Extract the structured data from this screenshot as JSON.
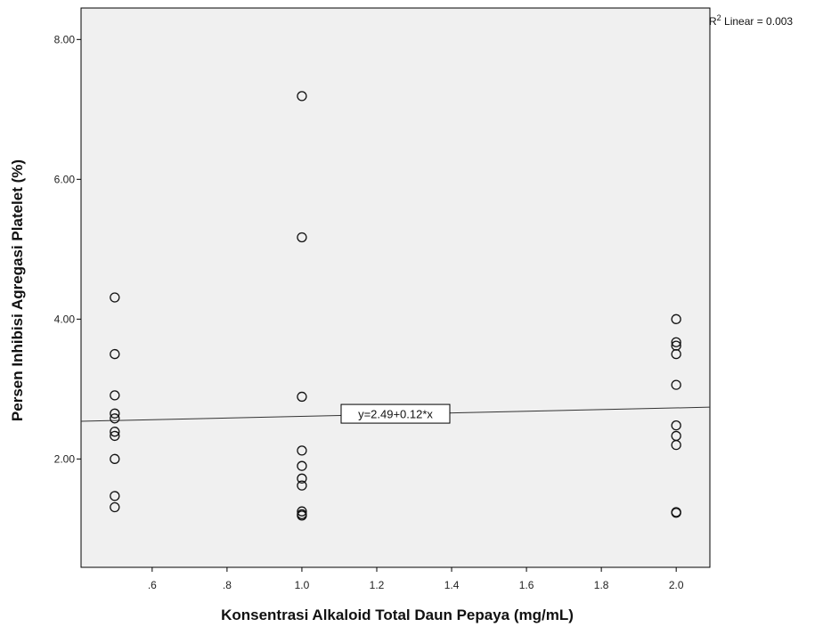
{
  "chart_data": {
    "type": "scatter",
    "xlabel": "Konsentrasi Alkaloid Total Daun Pepaya (mg/mL)",
    "ylabel": "Persen Inhibisi Agregasi Platelet (%)",
    "xlim": [
      0.41,
      2.09
    ],
    "ylim": [
      0.45,
      8.45
    ],
    "x_ticks": [
      0.6,
      0.8,
      1.0,
      1.2,
      1.4,
      1.6,
      1.8,
      2.0
    ],
    "x_tick_labels": [
      ".6",
      ".8",
      "1.0",
      "1.2",
      "1.4",
      "1.6",
      "1.8",
      "2.0"
    ],
    "y_ticks": [
      2.0,
      4.0,
      6.0,
      8.0
    ],
    "y_tick_labels": [
      "2.00",
      "4.00",
      "6.00",
      "8.00"
    ],
    "grid": false,
    "background_color": "#f0f0f0",
    "points": [
      {
        "x": 0.5,
        "y": 4.31
      },
      {
        "x": 0.5,
        "y": 3.5
      },
      {
        "x": 0.5,
        "y": 2.91
      },
      {
        "x": 0.5,
        "y": 2.65
      },
      {
        "x": 0.5,
        "y": 2.58
      },
      {
        "x": 0.5,
        "y": 2.39
      },
      {
        "x": 0.5,
        "y": 2.33
      },
      {
        "x": 0.5,
        "y": 2.0
      },
      {
        "x": 0.5,
        "y": 1.47
      },
      {
        "x": 0.5,
        "y": 1.31
      },
      {
        "x": 1.0,
        "y": 7.19
      },
      {
        "x": 1.0,
        "y": 5.17
      },
      {
        "x": 1.0,
        "y": 2.89
      },
      {
        "x": 1.0,
        "y": 2.12
      },
      {
        "x": 1.0,
        "y": 1.9
      },
      {
        "x": 1.0,
        "y": 1.72
      },
      {
        "x": 1.0,
        "y": 1.62
      },
      {
        "x": 1.0,
        "y": 1.25
      },
      {
        "x": 1.0,
        "y": 1.19
      },
      {
        "x": 1.0,
        "y": 1.21
      },
      {
        "x": 2.0,
        "y": 4.0
      },
      {
        "x": 2.0,
        "y": 3.67
      },
      {
        "x": 2.0,
        "y": 3.62
      },
      {
        "x": 2.0,
        "y": 3.5
      },
      {
        "x": 2.0,
        "y": 3.06
      },
      {
        "x": 2.0,
        "y": 2.48
      },
      {
        "x": 2.0,
        "y": 2.33
      },
      {
        "x": 2.0,
        "y": 2.2
      },
      {
        "x": 2.0,
        "y": 1.24
      },
      {
        "x": 2.0,
        "y": 1.23
      }
    ],
    "fit_line": {
      "intercept": 2.49,
      "slope": 0.12
    },
    "fit_label": "y=2.49+0.12*x",
    "fit_label_x": 1.25,
    "r2": {
      "prefix": "R",
      "superscript": "2",
      "text": " Linear = 0.003"
    }
  }
}
